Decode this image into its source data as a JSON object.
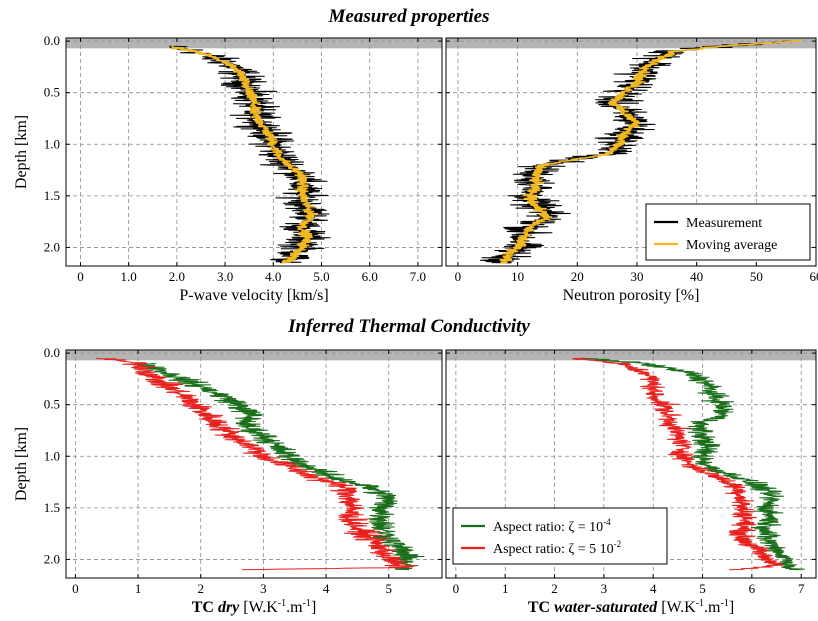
{
  "titles": {
    "top": "Measured properties",
    "bottom": "Inferred Thermal Conductivity"
  },
  "colors": {
    "measurement": "#000000",
    "moving_average": "#f2b822",
    "aspect_small": "#1a6e1a",
    "aspect_large": "#e8201e",
    "shade": "#b4b4b4",
    "grid": "#8c8c8c"
  },
  "chart_data": [
    {
      "id": "vp",
      "type": "line",
      "xlabel": "P-wave velocity [km/s]",
      "ylabel": "Depth [km]",
      "xlim": [
        -0.3,
        7.5
      ],
      "ylim": [
        2.18,
        -0.03
      ],
      "xticks": [
        0,
        1,
        2,
        3,
        4,
        5,
        6,
        7
      ],
      "xtick_labels": [
        "0",
        "1.0",
        "2.0",
        "3.0",
        "4.0",
        "5.0",
        "6.0",
        "7.0"
      ],
      "yticks": [
        0,
        0.5,
        1,
        1.5,
        2
      ],
      "ytick_labels": [
        "0.0",
        "0.5",
        "1.0",
        "1.5",
        "2.0"
      ],
      "shaded_depth": [
        -0.03,
        0.07
      ],
      "grid": true,
      "series": [
        {
          "role": "measurement",
          "noise": 0.38,
          "y": [
            0.05,
            0.1,
            0.2,
            0.3,
            0.4,
            0.5,
            0.6,
            0.7,
            0.8,
            0.9,
            1.0,
            1.1,
            1.2,
            1.3,
            1.4,
            1.5,
            1.6,
            1.7,
            1.8,
            1.9,
            2.0,
            2.1,
            2.15
          ],
          "x": [
            1.8,
            2.4,
            3.0,
            3.3,
            3.4,
            3.5,
            3.6,
            3.6,
            3.75,
            3.9,
            4.0,
            4.1,
            4.3,
            4.6,
            4.6,
            4.6,
            4.7,
            4.8,
            4.6,
            4.7,
            4.6,
            4.4,
            4.2
          ]
        },
        {
          "role": "moving_average",
          "noise": 0.1,
          "y": [
            0.05,
            0.1,
            0.2,
            0.3,
            0.4,
            0.5,
            0.6,
            0.7,
            0.8,
            0.9,
            1.0,
            1.1,
            1.2,
            1.3,
            1.4,
            1.5,
            1.6,
            1.7,
            1.8,
            1.9,
            2.0,
            2.1,
            2.15
          ],
          "x": [
            1.8,
            2.4,
            3.0,
            3.3,
            3.4,
            3.5,
            3.6,
            3.6,
            3.75,
            3.9,
            4.0,
            4.1,
            4.3,
            4.6,
            4.6,
            4.6,
            4.7,
            4.8,
            4.6,
            4.7,
            4.6,
            4.4,
            4.2
          ]
        }
      ]
    },
    {
      "id": "phi",
      "type": "line",
      "xlabel": "Neutron porosity [%]",
      "ylabel": "",
      "xlim": [
        -2,
        60
      ],
      "ylim": [
        2.18,
        -0.03
      ],
      "xticks": [
        0,
        10,
        20,
        30,
        40,
        50,
        60
      ],
      "xtick_labels": [
        "0",
        "10",
        "20",
        "30",
        "40",
        "50",
        "60"
      ],
      "yticks": [
        0,
        0.5,
        1,
        1.5,
        2
      ],
      "ytick_labels": [],
      "shaded_depth": [
        -0.03,
        0.07
      ],
      "grid": true,
      "legend": {
        "placement": "lower-right",
        "entries": [
          "Measurement",
          "Moving average"
        ]
      },
      "series": [
        {
          "role": "measurement",
          "noise": 3.2,
          "y": [
            0.0,
            0.05,
            0.1,
            0.2,
            0.3,
            0.4,
            0.5,
            0.6,
            0.7,
            0.8,
            0.9,
            1.0,
            1.1,
            1.15,
            1.2,
            1.3,
            1.4,
            1.5,
            1.6,
            1.7,
            1.8,
            1.9,
            2.0,
            2.1,
            2.15
          ],
          "x": [
            57,
            44,
            36,
            33,
            31,
            30,
            28,
            26,
            28,
            30,
            28,
            27,
            25,
            19,
            14,
            13,
            13,
            12,
            13,
            15,
            12,
            11,
            10,
            8,
            8
          ]
        },
        {
          "role": "moving_average",
          "noise": 0.9,
          "y": [
            0.0,
            0.05,
            0.1,
            0.2,
            0.3,
            0.4,
            0.5,
            0.6,
            0.7,
            0.8,
            0.9,
            1.0,
            1.1,
            1.15,
            1.2,
            1.3,
            1.4,
            1.5,
            1.6,
            1.7,
            1.8,
            1.9,
            2.0,
            2.1,
            2.15
          ],
          "x": [
            57,
            44,
            36,
            33,
            31,
            30,
            28,
            26,
            28,
            30,
            28,
            27,
            25,
            19,
            14,
            13,
            13,
            12,
            13,
            15,
            12,
            11,
            10,
            8,
            8
          ]
        }
      ]
    },
    {
      "id": "tcdry",
      "type": "line",
      "xlabel_bold": "TC",
      "xlabel_italic": "dry",
      "xlabel_rest": "[W.K",
      "xlabel_sup1": "-1",
      "xlabel_mid": ".m",
      "xlabel_sup2": "-1",
      "xlabel_end": "]",
      "ylabel": "Depth [km]",
      "xlim": [
        -0.15,
        5.85
      ],
      "ylim": [
        2.18,
        -0.03
      ],
      "xticks": [
        0,
        1,
        2,
        3,
        4,
        5
      ],
      "xtick_labels": [
        "0",
        "1",
        "2",
        "3",
        "4",
        "5"
      ],
      "yticks": [
        0,
        0.5,
        1,
        1.5,
        2
      ],
      "ytick_labels": [
        "0.0",
        "0.5",
        "1.0",
        "1.5",
        "2.0"
      ],
      "shaded_depth": [
        -0.03,
        0.07
      ],
      "grid": true,
      "series": [
        {
          "role": "aspect_small",
          "noise": 0.2,
          "y": [
            0.1,
            0.2,
            0.3,
            0.4,
            0.5,
            0.6,
            0.7,
            0.8,
            0.9,
            1.0,
            1.1,
            1.2,
            1.3,
            1.4,
            1.5,
            1.6,
            1.7,
            1.8,
            1.9,
            2.0,
            2.1
          ],
          "x": [
            1.1,
            1.5,
            1.9,
            2.3,
            2.6,
            2.8,
            2.7,
            3.0,
            3.2,
            3.4,
            3.7,
            4.1,
            4.7,
            5.0,
            4.9,
            4.9,
            4.9,
            5.0,
            5.2,
            5.3,
            5.2
          ]
        },
        {
          "role": "aspect_large",
          "noise": 0.2,
          "y": [
            0.05,
            0.1,
            0.2,
            0.3,
            0.4,
            0.5,
            0.6,
            0.7,
            0.8,
            0.9,
            1.0,
            1.1,
            1.2,
            1.3,
            1.4,
            1.5,
            1.6,
            1.7,
            1.8,
            1.9,
            2.0,
            2.08,
            2.1
          ],
          "x": [
            0.4,
            1.0,
            1.2,
            1.4,
            1.7,
            1.9,
            2.1,
            2.3,
            2.5,
            2.8,
            3.0,
            3.4,
            3.8,
            4.3,
            4.4,
            4.4,
            4.4,
            4.5,
            4.7,
            4.9,
            5.0,
            5.2,
            2.6
          ]
        }
      ]
    },
    {
      "id": "tcsat",
      "type": "line",
      "xlabel_bold": "TC",
      "xlabel_italic": "water-saturated",
      "xlabel_rest": "[W.K",
      "xlabel_sup1": "-1",
      "xlabel_mid": ".m",
      "xlabel_sup2": "-1",
      "xlabel_end": "]",
      "ylabel": "",
      "xlim": [
        -0.2,
        7.3
      ],
      "ylim": [
        2.18,
        -0.03
      ],
      "xticks": [
        0,
        1,
        2,
        3,
        4,
        5,
        6,
        7
      ],
      "xtick_labels": [
        "0",
        "1",
        "2",
        "3",
        "4",
        "5",
        "6",
        "7"
      ],
      "yticks": [
        0,
        0.5,
        1,
        1.5,
        2
      ],
      "ytick_labels": [],
      "shaded_depth": [
        -0.03,
        0.07
      ],
      "grid": true,
      "legend": {
        "placement": "lower-left",
        "entries": [
          {
            "text": "Aspect ratio: ζ = 10",
            "sup": "-4"
          },
          {
            "text": "Aspect ratio: ζ = 5 10",
            "sup": "-2"
          }
        ]
      },
      "series": [
        {
          "role": "aspect_small",
          "noise": 0.22,
          "y": [
            0.05,
            0.1,
            0.2,
            0.3,
            0.4,
            0.5,
            0.6,
            0.7,
            0.8,
            0.9,
            1.0,
            1.1,
            1.2,
            1.3,
            1.4,
            1.5,
            1.6,
            1.7,
            1.8,
            1.9,
            2.0,
            2.1
          ],
          "x": [
            2.6,
            3.8,
            4.8,
            5.1,
            5.2,
            5.4,
            5.4,
            4.9,
            5.0,
            5.1,
            5.0,
            5.1,
            5.7,
            6.2,
            6.4,
            6.3,
            6.4,
            6.3,
            6.3,
            6.5,
            6.7,
            6.8
          ]
        },
        {
          "role": "aspect_large",
          "noise": 0.2,
          "y": [
            0.05,
            0.1,
            0.2,
            0.3,
            0.4,
            0.5,
            0.6,
            0.7,
            0.8,
            0.9,
            1.0,
            1.1,
            1.2,
            1.3,
            1.4,
            1.5,
            1.6,
            1.7,
            1.8,
            1.9,
            2.0,
            2.05,
            2.1
          ],
          "x": [
            2.4,
            3.3,
            3.9,
            4.0,
            4.0,
            4.2,
            4.3,
            4.4,
            4.5,
            4.6,
            4.6,
            4.8,
            5.3,
            5.7,
            5.8,
            5.8,
            5.9,
            5.8,
            5.8,
            6.1,
            6.3,
            6.6,
            5.7
          ]
        }
      ]
    }
  ]
}
